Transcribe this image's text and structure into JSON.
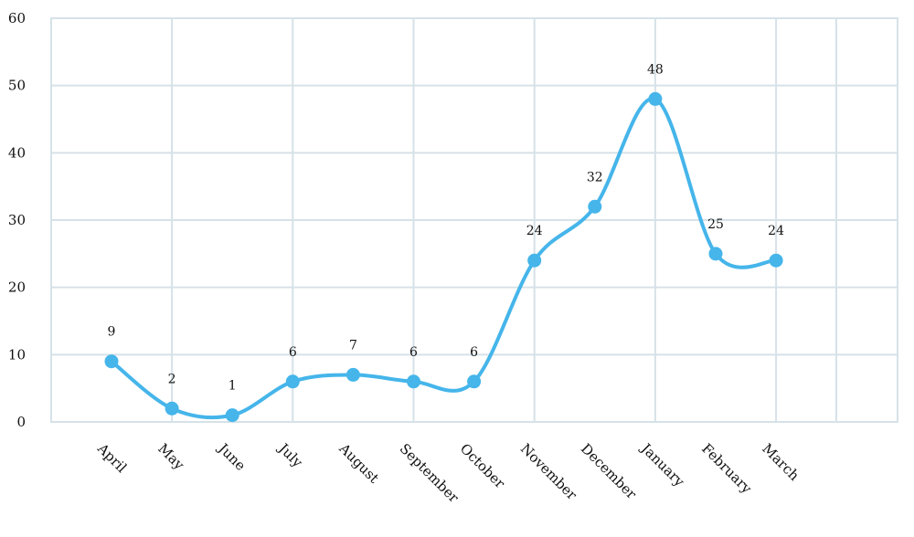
{
  "chart_data": {
    "type": "line",
    "title": "",
    "xlabel": "",
    "ylabel": "",
    "categories": [
      "April",
      "May",
      "June",
      "July",
      "August",
      "September",
      "October",
      "November",
      "December",
      "January",
      "February",
      "March"
    ],
    "values": [
      9,
      2,
      1,
      6,
      7,
      6,
      6,
      24,
      32,
      48,
      25,
      24
    ],
    "data_labels": [
      "9",
      "2",
      "1",
      "6",
      "7",
      "6",
      "6",
      "24",
      "32",
      "48",
      "25",
      "24"
    ],
    "ylim": [
      0,
      60
    ],
    "yticks": [
      0,
      10,
      20,
      30,
      40,
      50,
      60
    ],
    "ytick_labels": [
      "0",
      "10",
      "20",
      "30",
      "40",
      "50",
      "60"
    ],
    "grid": true,
    "smooth": true,
    "legend": "none",
    "colors": {
      "series": "#45b5ea",
      "grid": "#d6e2e8"
    }
  }
}
